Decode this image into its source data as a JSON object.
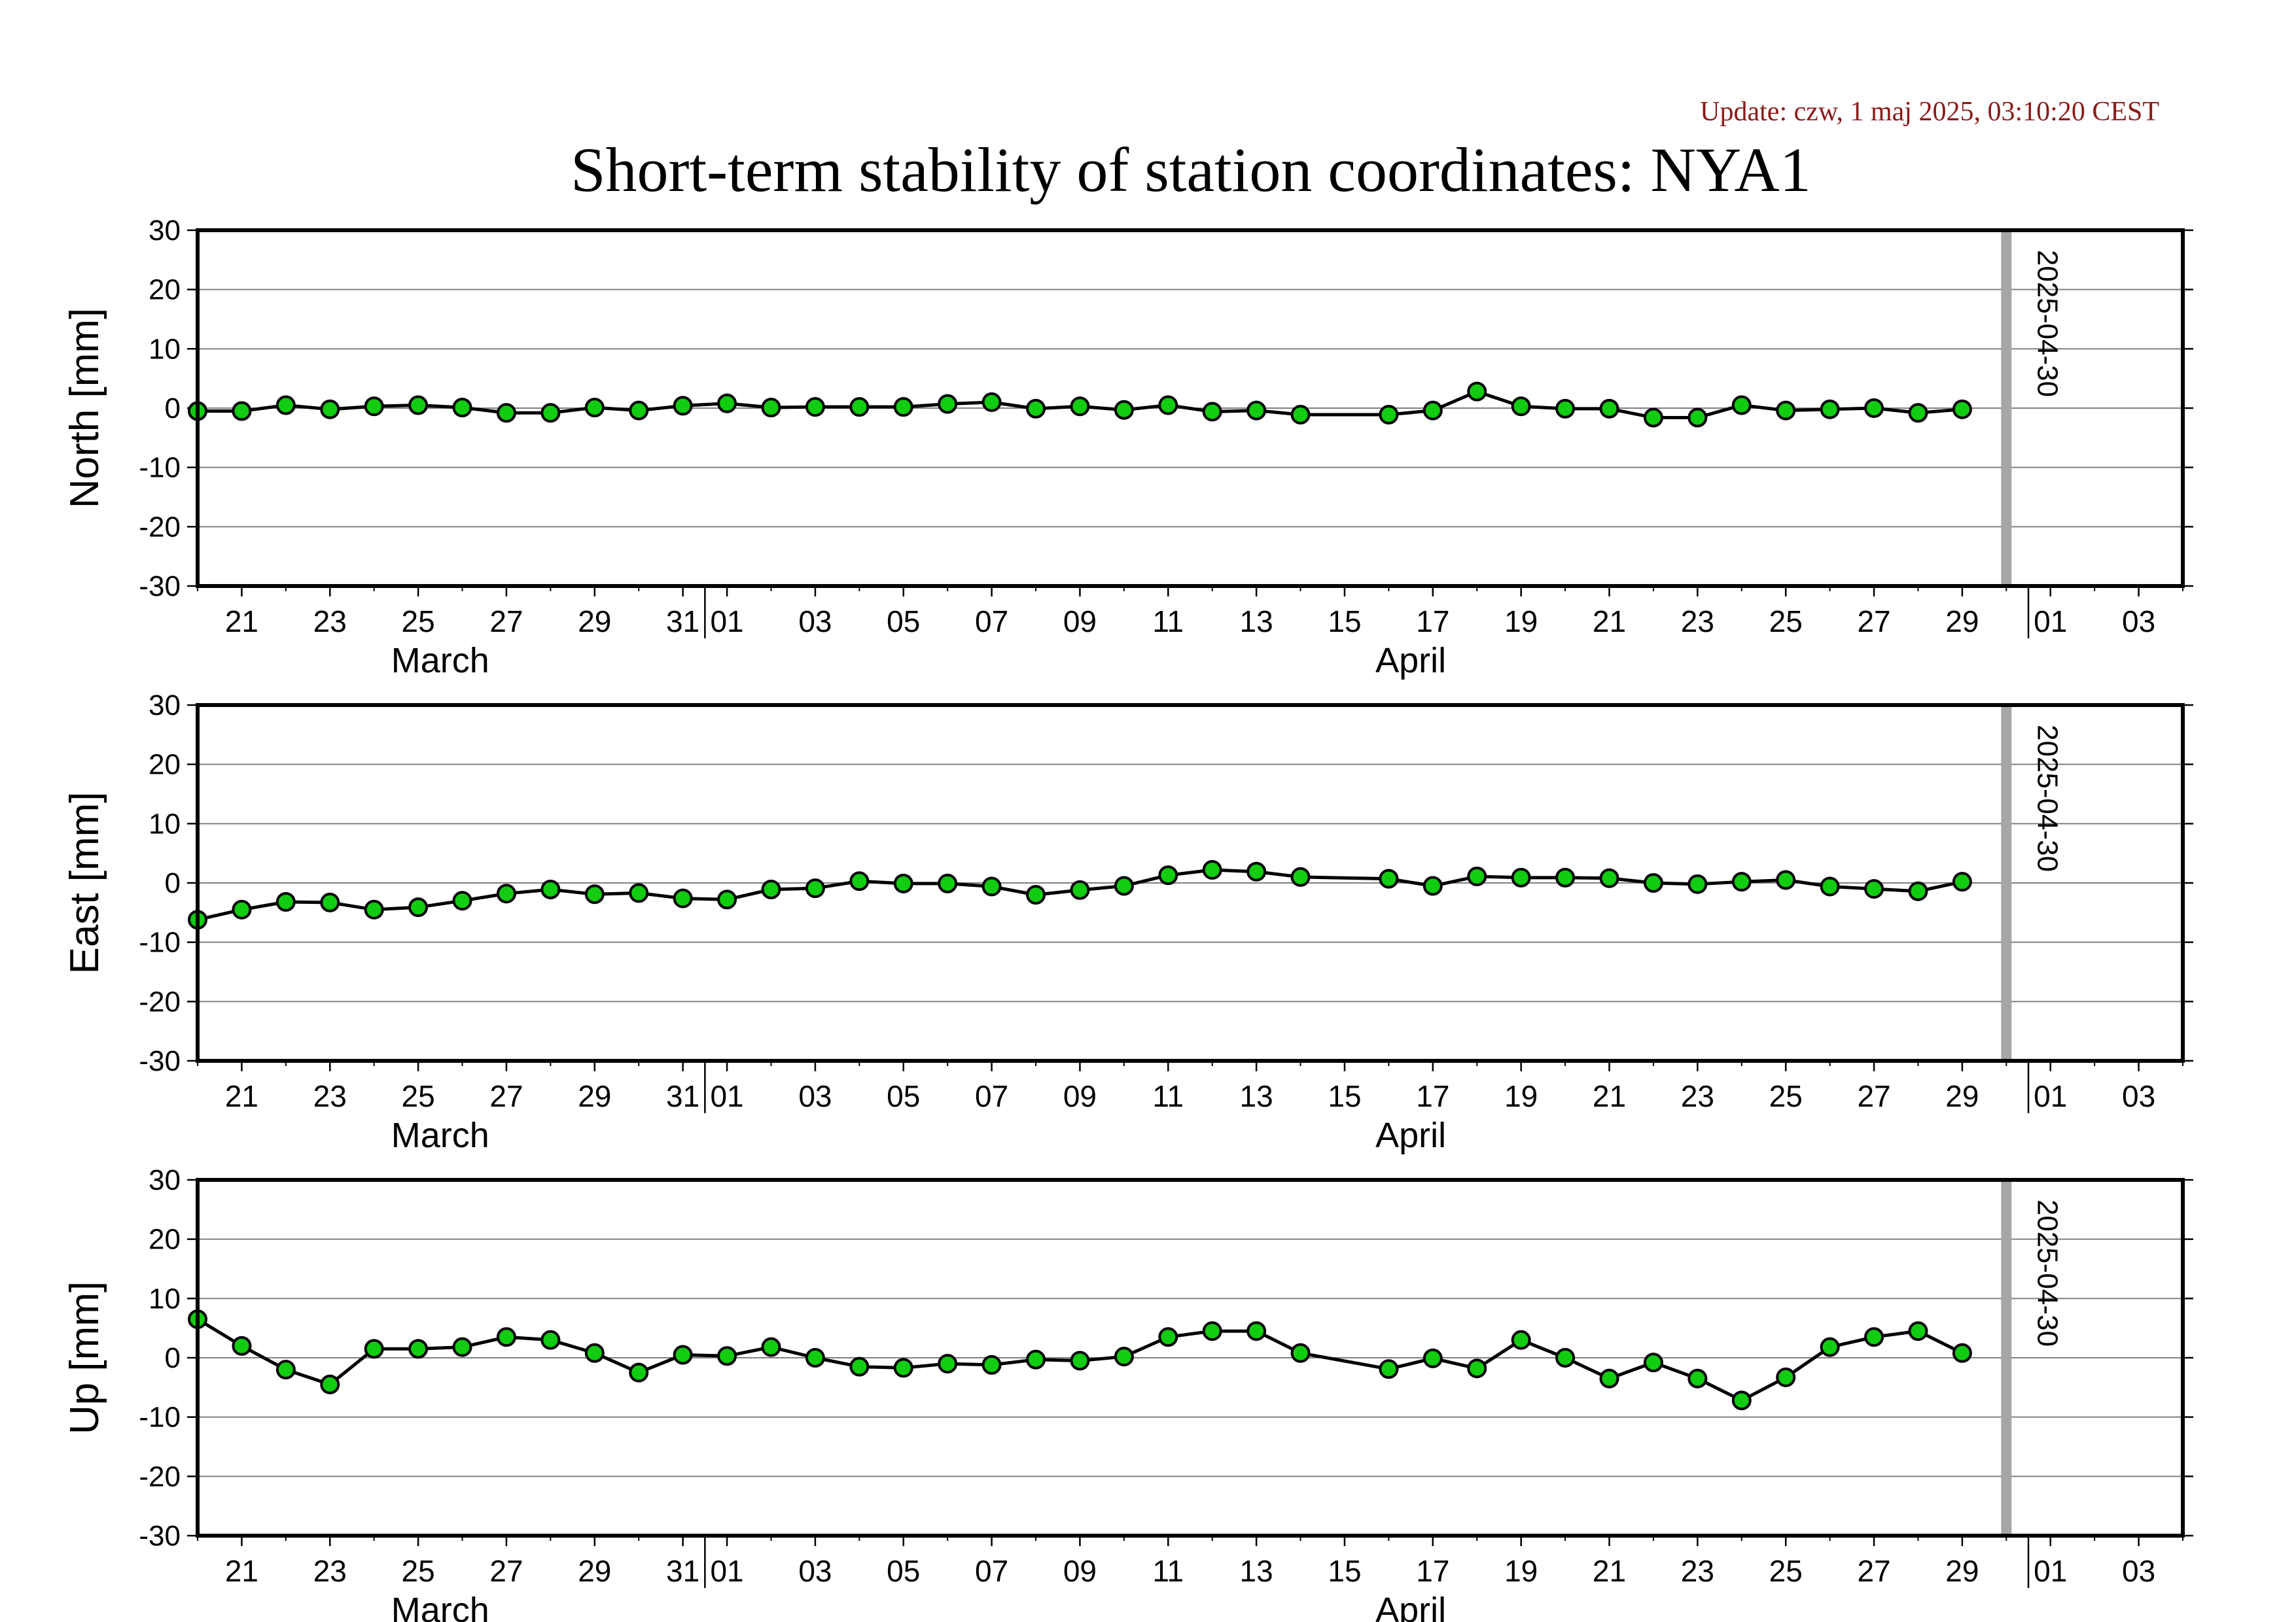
{
  "header": {
    "update_text": "Update: czw, 1 maj 2025, 03:10:20 CEST",
    "title": "Short-term stability of station coordinates: NYA1"
  },
  "colors": {
    "marker_fill": "#11cc11",
    "marker_stroke": "#000000",
    "line": "#000000",
    "grid": "#808080",
    "marker_line": "#a6a6a6",
    "update_text": "#8b1a1a"
  },
  "chart_data": [
    {
      "type": "line",
      "ylabel": "North [mm]",
      "ylim": [
        -30,
        30
      ],
      "yticks": [
        "30",
        "20",
        "10",
        "0",
        "-10",
        "-20",
        "-30"
      ],
      "xlim": [
        "2025-03-20",
        "2025-05-04"
      ],
      "xtick_labels": [
        {
          "date": "2025-03-21",
          "label": "21"
        },
        {
          "date": "2025-03-23",
          "label": "23"
        },
        {
          "date": "2025-03-25",
          "label": "25"
        },
        {
          "date": "2025-03-27",
          "label": "27"
        },
        {
          "date": "2025-03-29",
          "label": "29"
        },
        {
          "date": "2025-03-31",
          "label": "31"
        },
        {
          "date": "2025-04-01",
          "label": "01"
        },
        {
          "date": "2025-04-03",
          "label": "03"
        },
        {
          "date": "2025-04-05",
          "label": "05"
        },
        {
          "date": "2025-04-07",
          "label": "07"
        },
        {
          "date": "2025-04-09",
          "label": "09"
        },
        {
          "date": "2025-04-11",
          "label": "11"
        },
        {
          "date": "2025-04-13",
          "label": "13"
        },
        {
          "date": "2025-04-15",
          "label": "15"
        },
        {
          "date": "2025-04-17",
          "label": "17"
        },
        {
          "date": "2025-04-19",
          "label": "19"
        },
        {
          "date": "2025-04-21",
          "label": "21"
        },
        {
          "date": "2025-04-23",
          "label": "23"
        },
        {
          "date": "2025-04-25",
          "label": "25"
        },
        {
          "date": "2025-04-27",
          "label": "27"
        },
        {
          "date": "2025-04-29",
          "label": "29"
        },
        {
          "date": "2025-05-01",
          "label": "01"
        },
        {
          "date": "2025-05-03",
          "label": "03"
        }
      ],
      "month_labels": [
        {
          "date": "2025-03-25.5",
          "label": "March"
        },
        {
          "date": "2025-04-16.5",
          "label": "April"
        }
      ],
      "month_boundaries": [
        "2025-03-31.5",
        "2025-04-30.5"
      ],
      "marker_date": "2025-04-30",
      "marker_label": "2025-04-30",
      "grid": true,
      "x": [
        "2025-03-20",
        "2025-03-21",
        "2025-03-22",
        "2025-03-23",
        "2025-03-24",
        "2025-03-25",
        "2025-03-26",
        "2025-03-27",
        "2025-03-28",
        "2025-03-29",
        "2025-03-30",
        "2025-03-31",
        "2025-04-01",
        "2025-04-02",
        "2025-04-03",
        "2025-04-04",
        "2025-04-05",
        "2025-04-06",
        "2025-04-07",
        "2025-04-08",
        "2025-04-09",
        "2025-04-10",
        "2025-04-11",
        "2025-04-12",
        "2025-04-13",
        "2025-04-14",
        "2025-04-16",
        "2025-04-17",
        "2025-04-18",
        "2025-04-19",
        "2025-04-20",
        "2025-04-21",
        "2025-04-22",
        "2025-04-23",
        "2025-04-24",
        "2025-04-25",
        "2025-04-26",
        "2025-04-27",
        "2025-04-28",
        "2025-04-29"
      ],
      "y": [
        -0.5,
        -0.5,
        0.5,
        -0.2,
        0.3,
        0.5,
        0.1,
        -0.8,
        -0.8,
        0.1,
        -0.4,
        0.4,
        0.8,
        0.1,
        0.2,
        0.2,
        0.2,
        0.7,
        1.0,
        -0.1,
        0.3,
        -0.3,
        0.5,
        -0.6,
        -0.4,
        -1.1,
        -1.1,
        -0.4,
        2.8,
        0.3,
        -0.1,
        -0.1,
        -1.6,
        -1.6,
        0.5,
        -0.4,
        -0.2,
        0.0,
        -0.8,
        -0.2
      ]
    },
    {
      "type": "line",
      "ylabel": "East [mm]",
      "ylim": [
        -30,
        30
      ],
      "yticks": [
        "30",
        "20",
        "10",
        "0",
        "-10",
        "-20",
        "-30"
      ],
      "xlim": [
        "2025-03-20",
        "2025-05-04"
      ],
      "xtick_labels": [
        {
          "date": "2025-03-21",
          "label": "21"
        },
        {
          "date": "2025-03-23",
          "label": "23"
        },
        {
          "date": "2025-03-25",
          "label": "25"
        },
        {
          "date": "2025-03-27",
          "label": "27"
        },
        {
          "date": "2025-03-29",
          "label": "29"
        },
        {
          "date": "2025-03-31",
          "label": "31"
        },
        {
          "date": "2025-04-01",
          "label": "01"
        },
        {
          "date": "2025-04-03",
          "label": "03"
        },
        {
          "date": "2025-04-05",
          "label": "05"
        },
        {
          "date": "2025-04-07",
          "label": "07"
        },
        {
          "date": "2025-04-09",
          "label": "09"
        },
        {
          "date": "2025-04-11",
          "label": "11"
        },
        {
          "date": "2025-04-13",
          "label": "13"
        },
        {
          "date": "2025-04-15",
          "label": "15"
        },
        {
          "date": "2025-04-17",
          "label": "17"
        },
        {
          "date": "2025-04-19",
          "label": "19"
        },
        {
          "date": "2025-04-21",
          "label": "21"
        },
        {
          "date": "2025-04-23",
          "label": "23"
        },
        {
          "date": "2025-04-25",
          "label": "25"
        },
        {
          "date": "2025-04-27",
          "label": "27"
        },
        {
          "date": "2025-04-29",
          "label": "29"
        },
        {
          "date": "2025-05-01",
          "label": "01"
        },
        {
          "date": "2025-05-03",
          "label": "03"
        }
      ],
      "month_labels": [
        {
          "date": "2025-03-25.5",
          "label": "March"
        },
        {
          "date": "2025-04-16.5",
          "label": "April"
        }
      ],
      "month_boundaries": [
        "2025-03-31.5",
        "2025-04-30.5"
      ],
      "marker_date": "2025-04-30",
      "marker_label": "2025-04-30",
      "grid": true,
      "x": [
        "2025-03-20",
        "2025-03-21",
        "2025-03-22",
        "2025-03-23",
        "2025-03-24",
        "2025-03-25",
        "2025-03-26",
        "2025-03-27",
        "2025-03-28",
        "2025-03-29",
        "2025-03-30",
        "2025-03-31",
        "2025-04-01",
        "2025-04-02",
        "2025-04-03",
        "2025-04-04",
        "2025-04-05",
        "2025-04-06",
        "2025-04-07",
        "2025-04-08",
        "2025-04-09",
        "2025-04-10",
        "2025-04-11",
        "2025-04-12",
        "2025-04-13",
        "2025-04-14",
        "2025-04-16",
        "2025-04-17",
        "2025-04-18",
        "2025-04-19",
        "2025-04-20",
        "2025-04-21",
        "2025-04-22",
        "2025-04-23",
        "2025-04-24",
        "2025-04-25",
        "2025-04-26",
        "2025-04-27",
        "2025-04-28",
        "2025-04-29"
      ],
      "y": [
        -6.2,
        -4.5,
        -3.2,
        -3.3,
        -4.5,
        -4.1,
        -3.0,
        -1.8,
        -1.1,
        -1.9,
        -1.7,
        -2.6,
        -2.8,
        -1.1,
        -0.9,
        0.3,
        -0.1,
        -0.1,
        -0.6,
        -2.0,
        -1.2,
        -0.5,
        1.3,
        2.2,
        1.9,
        1.0,
        0.7,
        -0.5,
        1.1,
        0.9,
        0.9,
        0.8,
        0.0,
        -0.2,
        0.2,
        0.5,
        -0.6,
        -1.0,
        -1.4,
        0.2
      ]
    },
    {
      "type": "line",
      "ylabel": "Up [mm]",
      "ylim": [
        -30,
        30
      ],
      "yticks": [
        "30",
        "20",
        "10",
        "0",
        "-10",
        "-20",
        "-30"
      ],
      "xlim": [
        "2025-03-20",
        "2025-05-04"
      ],
      "xtick_labels": [
        {
          "date": "2025-03-21",
          "label": "21"
        },
        {
          "date": "2025-03-23",
          "label": "23"
        },
        {
          "date": "2025-03-25",
          "label": "25"
        },
        {
          "date": "2025-03-27",
          "label": "27"
        },
        {
          "date": "2025-03-29",
          "label": "29"
        },
        {
          "date": "2025-03-31",
          "label": "31"
        },
        {
          "date": "2025-04-01",
          "label": "01"
        },
        {
          "date": "2025-04-03",
          "label": "03"
        },
        {
          "date": "2025-04-05",
          "label": "05"
        },
        {
          "date": "2025-04-07",
          "label": "07"
        },
        {
          "date": "2025-04-09",
          "label": "09"
        },
        {
          "date": "2025-04-11",
          "label": "11"
        },
        {
          "date": "2025-04-13",
          "label": "13"
        },
        {
          "date": "2025-04-15",
          "label": "15"
        },
        {
          "date": "2025-04-17",
          "label": "17"
        },
        {
          "date": "2025-04-19",
          "label": "19"
        },
        {
          "date": "2025-04-21",
          "label": "21"
        },
        {
          "date": "2025-04-23",
          "label": "23"
        },
        {
          "date": "2025-04-25",
          "label": "25"
        },
        {
          "date": "2025-04-27",
          "label": "27"
        },
        {
          "date": "2025-04-29",
          "label": "29"
        },
        {
          "date": "2025-05-01",
          "label": "01"
        },
        {
          "date": "2025-05-03",
          "label": "03"
        }
      ],
      "month_labels": [
        {
          "date": "2025-03-25.5",
          "label": "March"
        },
        {
          "date": "2025-04-16.5",
          "label": "April"
        }
      ],
      "month_boundaries": [
        "2025-03-31.5",
        "2025-04-30.5"
      ],
      "marker_date": "2025-04-30",
      "marker_label": "2025-04-30",
      "grid": true,
      "x": [
        "2025-03-20",
        "2025-03-21",
        "2025-03-22",
        "2025-03-23",
        "2025-03-24",
        "2025-03-25",
        "2025-03-26",
        "2025-03-27",
        "2025-03-28",
        "2025-03-29",
        "2025-03-30",
        "2025-03-31",
        "2025-04-01",
        "2025-04-02",
        "2025-04-03",
        "2025-04-04",
        "2025-04-05",
        "2025-04-06",
        "2025-04-07",
        "2025-04-08",
        "2025-04-09",
        "2025-04-10",
        "2025-04-11",
        "2025-04-12",
        "2025-04-13",
        "2025-04-14",
        "2025-04-16",
        "2025-04-17",
        "2025-04-18",
        "2025-04-19",
        "2025-04-20",
        "2025-04-21",
        "2025-04-22",
        "2025-04-23",
        "2025-04-24",
        "2025-04-25",
        "2025-04-26",
        "2025-04-27",
        "2025-04-28",
        "2025-04-29"
      ],
      "y": [
        6.5,
        2.0,
        -2.0,
        -4.5,
        1.5,
        1.5,
        1.8,
        3.5,
        3.0,
        0.8,
        -2.5,
        0.5,
        0.3,
        1.8,
        0.0,
        -1.5,
        -1.7,
        -1.0,
        -1.2,
        -0.3,
        -0.5,
        0.2,
        3.5,
        4.5,
        4.5,
        0.8,
        -1.9,
        -0.1,
        -1.8,
        3.0,
        0.0,
        -3.5,
        -0.8,
        -3.5,
        -7.2,
        -3.3,
        1.8,
        3.5,
        4.5,
        0.8
      ]
    }
  ]
}
